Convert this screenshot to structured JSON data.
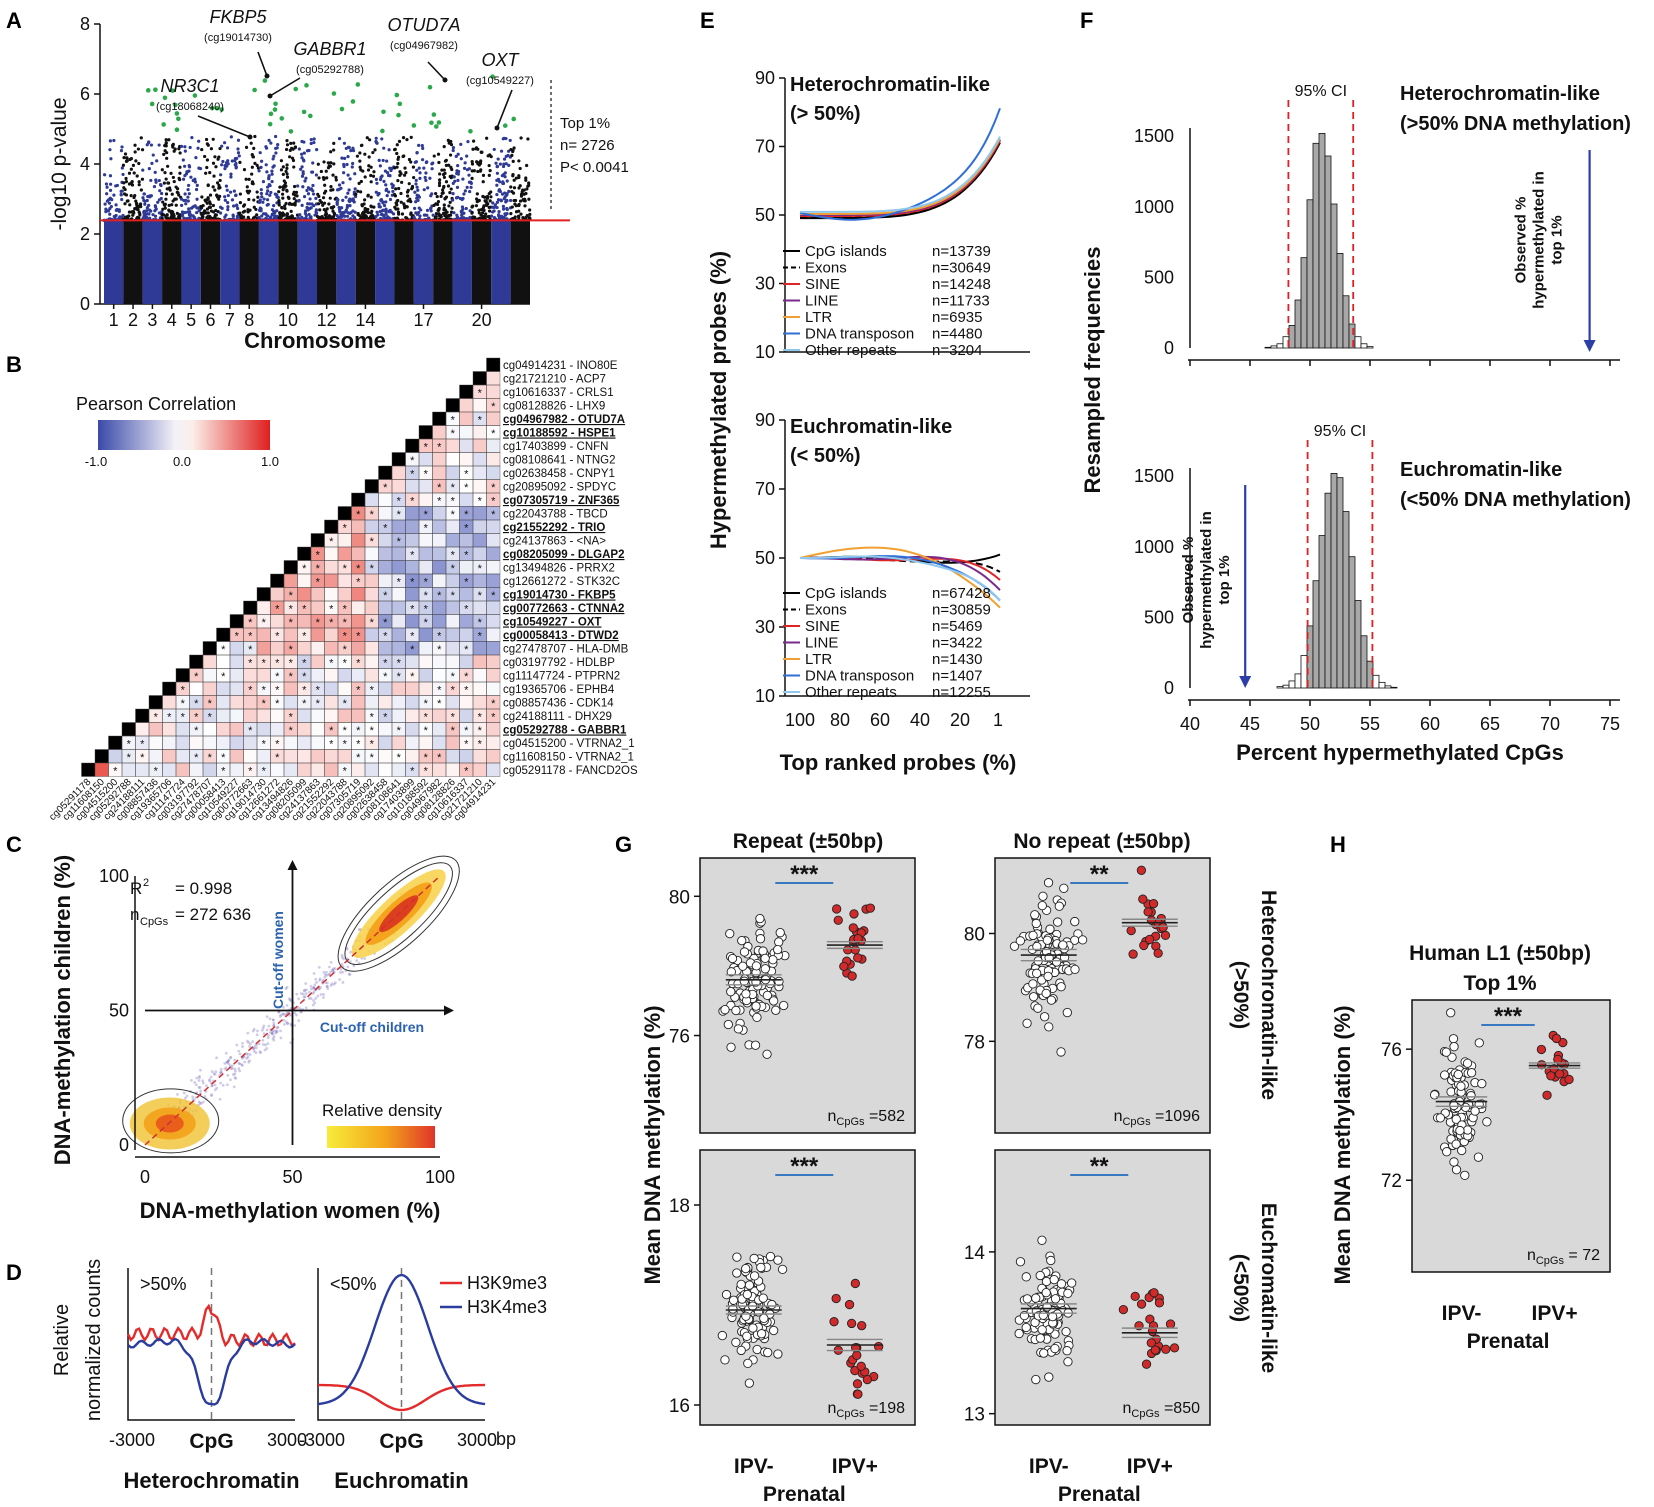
{
  "panel_labels": {
    "A": "A",
    "B": "B",
    "C": "C",
    "D": "D",
    "E": "E",
    "F": "F",
    "G": "G",
    "H": "H"
  },
  "chart_data": [
    {
      "id": "A",
      "type": "scatter",
      "title": "",
      "xlabel": "Chromosome",
      "ylabel": "-log10 p-value",
      "ylim": [
        0,
        8
      ],
      "yticks": [
        "0",
        "2",
        "4",
        "6",
        "8"
      ],
      "xticks": [
        "1",
        "2",
        "3",
        "4",
        "5",
        "6",
        "7",
        "8",
        "10",
        "12",
        "14",
        "17",
        "20"
      ],
      "threshold": 2.39,
      "threshold_note": [
        "Top 1%",
        "n= 2726",
        "P< 0.0041"
      ],
      "annotations": [
        {
          "gene": "FKBP5",
          "probe": "(cg19014730)",
          "y": 6.6
        },
        {
          "gene": "GABBR1",
          "probe": "(cg05292788)",
          "y": 6.0
        },
        {
          "gene": "NR3C1",
          "probe": "(cg18068240)",
          "y": 4.8
        },
        {
          "gene": "OTUD7A",
          "probe": "(cg04967982)",
          "y": 6.5
        },
        {
          "gene": "OXT",
          "probe": "(cg10549227)",
          "y": 5.2
        }
      ]
    },
    {
      "id": "B",
      "type": "heatmap",
      "title": "Pearson Correlation",
      "scale": [
        "-1.0",
        "0.0",
        "1.0"
      ],
      "rows": [
        {
          "probe": "cg04914231",
          "gene": "INO80E",
          "bold": false
        },
        {
          "probe": "cg21721210",
          "gene": "ACP7",
          "bold": false
        },
        {
          "probe": "cg10616337",
          "gene": "CRLS1",
          "bold": false
        },
        {
          "probe": "cg08128826",
          "gene": "LHX9",
          "bold": false
        },
        {
          "probe": "cg04967982",
          "gene": "OTUD7A",
          "bold": true
        },
        {
          "probe": "cg10188592",
          "gene": "HSPE1",
          "bold": true
        },
        {
          "probe": "cg17403899",
          "gene": "CNFN",
          "bold": false
        },
        {
          "probe": "cg08108641",
          "gene": "NTNG2",
          "bold": false
        },
        {
          "probe": "cg02638458",
          "gene": "CNPY1",
          "bold": false
        },
        {
          "probe": "cg20895092",
          "gene": "SPDYC",
          "bold": false
        },
        {
          "probe": "cg07305719",
          "gene": "ZNF365",
          "bold": true
        },
        {
          "probe": "cg22043788",
          "gene": "TBCD",
          "bold": false
        },
        {
          "probe": "cg21552292",
          "gene": "TRIO",
          "bold": true
        },
        {
          "probe": "cg24137863",
          "gene": "<NA>",
          "bold": false
        },
        {
          "probe": "cg08205099",
          "gene": "DLGAP2",
          "bold": true
        },
        {
          "probe": "cg13494826",
          "gene": "PRRX2",
          "bold": false
        },
        {
          "probe": "cg12661272",
          "gene": "STK32C",
          "bold": false
        },
        {
          "probe": "cg19014730",
          "gene": "FKBP5",
          "bold": true
        },
        {
          "probe": "cg00772663",
          "gene": "CTNNA2",
          "bold": true
        },
        {
          "probe": "cg10549227",
          "gene": "OXT",
          "bold": true
        },
        {
          "probe": "cg00058413",
          "gene": "DTWD2",
          "bold": true
        },
        {
          "probe": "cg27478707",
          "gene": "HLA-DMB",
          "bold": false
        },
        {
          "probe": "cg03197792",
          "gene": "HDLBP",
          "bold": false
        },
        {
          "probe": "cg11147724",
          "gene": "PTPRN2",
          "bold": false
        },
        {
          "probe": "cg19365706",
          "gene": "EPHB4",
          "bold": false
        },
        {
          "probe": "cg08857436",
          "gene": "CDK14",
          "bold": false
        },
        {
          "probe": "cg24188111",
          "gene": "DHX29",
          "bold": false
        },
        {
          "probe": "cg05292788",
          "gene": "GABBR1",
          "bold": true
        },
        {
          "probe": "cg04515200",
          "gene": "VTRNA2_1",
          "bold": false
        },
        {
          "probe": "cg11608150",
          "gene": "VTRNA2_1",
          "bold": false
        },
        {
          "probe": "cg05291178",
          "gene": "FANCD2OS",
          "bold": false
        }
      ]
    },
    {
      "id": "C",
      "type": "scatter",
      "xlabel": "DNA-methylation women (%)",
      "ylabel": "DNA-methylation children (%)",
      "xlim": [
        0,
        100
      ],
      "ylim": [
        0,
        100
      ],
      "xticks": [
        "0",
        "50",
        "100"
      ],
      "yticks": [
        "0",
        "50",
        "100"
      ],
      "r2_label": "R",
      "r2_sup": "2",
      "r2_value": "= 0.998",
      "n_label": "n",
      "n_sub": "CpGs",
      "n_value": "= 272 636",
      "cutoff_women": "Cut-off women",
      "cutoff_children": "Cut-off children",
      "density_legend": "Relative density"
    },
    {
      "id": "D",
      "type": "line",
      "ylabel": [
        "Relative",
        "normalized  counts"
      ],
      "xticks": [
        "-3000",
        "CpG",
        "3000"
      ],
      "unit": "bp",
      "subplots": [
        {
          "label": ">50%",
          "name": "Heterochromatin"
        },
        {
          "label": "<50%",
          "name": "Euchromatin"
        }
      ],
      "series": [
        {
          "name": "H3K9me3",
          "color": "#e32b2b"
        },
        {
          "name": "H3K4me3",
          "color": "#2a3d9e"
        }
      ]
    },
    {
      "id": "E",
      "type": "line",
      "ylabel": "Hypermethylated probes (%)",
      "xlabel": "Top ranked probes (%)",
      "xticks": [
        "100",
        "80",
        "60",
        "40",
        "20",
        "1"
      ],
      "yticks": [
        "10",
        "30",
        "50",
        "70",
        "90"
      ],
      "ylim": [
        10,
        90
      ],
      "subplots": [
        {
          "title": [
            "Heterochromatin-like",
            "(> 50%)"
          ],
          "legend": [
            {
              "name": "CpG islands",
              "n": "n=13739",
              "color": "#000000",
              "dash": false
            },
            {
              "name": "Exons",
              "n": "n=30649",
              "color": "#000000",
              "dash": true
            },
            {
              "name": "SINE",
              "n": "n=14248",
              "color": "#e02424",
              "dash": false
            },
            {
              "name": "LINE",
              "n": "n=11733",
              "color": "#7b2a8c",
              "dash": false
            },
            {
              "name": "LTR",
              "n": "n=6935",
              "color": "#f0a030",
              "dash": false
            },
            {
              "name": "DNA transposon",
              "n": "n=4480",
              "color": "#2f6fd6",
              "dash": false
            },
            {
              "name": "Other repeats",
              "n": "n=3204",
              "color": "#8fc8ee",
              "dash": false
            }
          ]
        },
        {
          "title": [
            "Euchromatin-like",
            "(< 50%)"
          ],
          "legend": [
            {
              "name": "CpG islands",
              "n": "n=67428",
              "color": "#000000",
              "dash": false
            },
            {
              "name": "Exons",
              "n": "n=30859",
              "color": "#000000",
              "dash": true
            },
            {
              "name": "SINE",
              "n": "n=5469",
              "color": "#e02424",
              "dash": false
            },
            {
              "name": "LINE",
              "n": "n=3422",
              "color": "#7b2a8c",
              "dash": false
            },
            {
              "name": "LTR",
              "n": "n=1430",
              "color": "#f0a030",
              "dash": false
            },
            {
              "name": "DNA transposon",
              "n": "n=1407",
              "color": "#2f6fd6",
              "dash": false
            },
            {
              "name": "Other repeats",
              "n": "n=12255",
              "color": "#8fc8ee",
              "dash": false
            }
          ]
        }
      ]
    },
    {
      "id": "F",
      "type": "bar",
      "ylabel": "Resampled frequencies",
      "xlabel": "Percent hypermethylated CpGs",
      "xticks": [
        "40",
        "45",
        "50",
        "55",
        "60",
        "65",
        "70",
        "75"
      ],
      "yticks": [
        "0",
        "500",
        "1000",
        "1500"
      ],
      "subplots": [
        {
          "title": [
            "Heterochromatin-like",
            "(>50% DNA methylation)"
          ],
          "ci_label": "95% CI",
          "ci": [
            48.2,
            53.6
          ],
          "observed": 73.3,
          "observed_label": [
            "Observed %",
            "hypermethylated in",
            "top 1%"
          ],
          "bin_centers": [
            46.5,
            47,
            47.5,
            48,
            48.5,
            49,
            49.5,
            50,
            50.5,
            51,
            51.5,
            52,
            52.5,
            53,
            53.5,
            54,
            54.5,
            55
          ],
          "values": [
            5,
            15,
            30,
            80,
            160,
            340,
            640,
            1050,
            1450,
            1520,
            1360,
            1020,
            670,
            370,
            170,
            80,
            30,
            10
          ]
        },
        {
          "title": [
            "Euchromatin-like",
            "(<50% DNA methylation)"
          ],
          "ci_label": "95% CI",
          "ci": [
            49.8,
            55.2
          ],
          "observed": 44.6,
          "observed_label": [
            "Observed %",
            "hypermethylated in",
            "top 1%"
          ],
          "bin_centers": [
            47.5,
            48,
            48.5,
            49,
            49.5,
            50,
            50.5,
            51,
            51.5,
            52,
            52.5,
            53,
            53.5,
            54,
            54.5,
            55,
            55.5,
            56,
            56.5,
            57
          ],
          "values": [
            10,
            20,
            50,
            100,
            230,
            440,
            760,
            1080,
            1380,
            1520,
            1490,
            1250,
            930,
            620,
            370,
            190,
            90,
            40,
            15,
            5
          ]
        }
      ]
    },
    {
      "id": "G",
      "type": "scatter",
      "ylabel": "Mean DNA methylation (%)",
      "group_labels": [
        "IPV-",
        "IPV+"
      ],
      "group_caption": "Prenatal",
      "col_titles": [
        "Repeat (±50bp)",
        "No repeat (±50bp)"
      ],
      "row_titles": [
        "Heterochromatin-like (>50%)",
        "Euchromatin-like (<50%)"
      ],
      "row_titles_lines": [
        [
          "Heterochromatin-like",
          "(>50%)"
        ],
        [
          "Euchromatin-like",
          "(<50%)"
        ]
      ],
      "subplots": [
        {
          "yticks": [
            "76",
            "80"
          ],
          "ytick_vals": [
            76,
            80
          ],
          "ylim": [
            73.2,
            81.1
          ],
          "n": "=582",
          "sig": "***",
          "mean_neg": 77.6,
          "mean_pos": 78.6,
          "sd_neg": 0.9,
          "sd_pos": 0.6,
          "n_neg": 110,
          "n_pos": 22
        },
        {
          "yticks": [
            "78",
            "80"
          ],
          "ytick_vals": [
            78,
            80
          ],
          "ylim": [
            76.3,
            81.4
          ],
          "n": "=1096",
          "sig": "**",
          "mean_neg": 79.6,
          "mean_pos": 80.2,
          "sd_neg": 0.65,
          "sd_pos": 0.4,
          "n_neg": 110,
          "n_pos": 22
        },
        {
          "yticks": [
            "16",
            "18"
          ],
          "ytick_vals": [
            16,
            18
          ],
          "ylim": [
            15.8,
            18.55
          ],
          "n": "=198",
          "sig": "***",
          "mean_neg": 16.95,
          "mean_pos": 16.6,
          "sd_neg": 0.25,
          "sd_pos": 0.35,
          "n_neg": 110,
          "n_pos": 22
        },
        {
          "yticks": [
            "13",
            "14"
          ],
          "ytick_vals": [
            13,
            14
          ],
          "ylim": [
            12.93,
            14.63
          ],
          "n": "=850",
          "sig": "**",
          "mean_neg": 13.65,
          "mean_pos": 13.5,
          "sd_neg": 0.18,
          "sd_pos": 0.18,
          "n_neg": 110,
          "n_pos": 22
        }
      ]
    },
    {
      "id": "H",
      "type": "scatter",
      "title": [
        "Human L1 (±50bp)",
        "Top 1%"
      ],
      "ylabel": "Mean DNA methylation (%)",
      "group_labels": [
        "IPV-",
        "IPV+"
      ],
      "group_caption": "Prenatal",
      "yticks": [
        "72",
        "76"
      ],
      "ytick_vals": [
        72,
        76
      ],
      "ylim": [
        69.2,
        77.5
      ],
      "n": "= 72",
      "sig": "***",
      "mean_neg": 74.4,
      "mean_pos": 75.5,
      "sd_neg": 0.9,
      "sd_pos": 0.5,
      "n_neg": 100,
      "n_pos": 18
    }
  ],
  "colors": {
    "manhattan_blue": "#2e3a96",
    "manhattan_black": "#111111",
    "hit_green": "#2aa84a",
    "threshold_red": "#e22020",
    "heat_pos": "#e53030",
    "heat_neg": "#4a55b0",
    "panel_bg": "#d9d9d9",
    "ipv_pos": "#d02a2a"
  }
}
